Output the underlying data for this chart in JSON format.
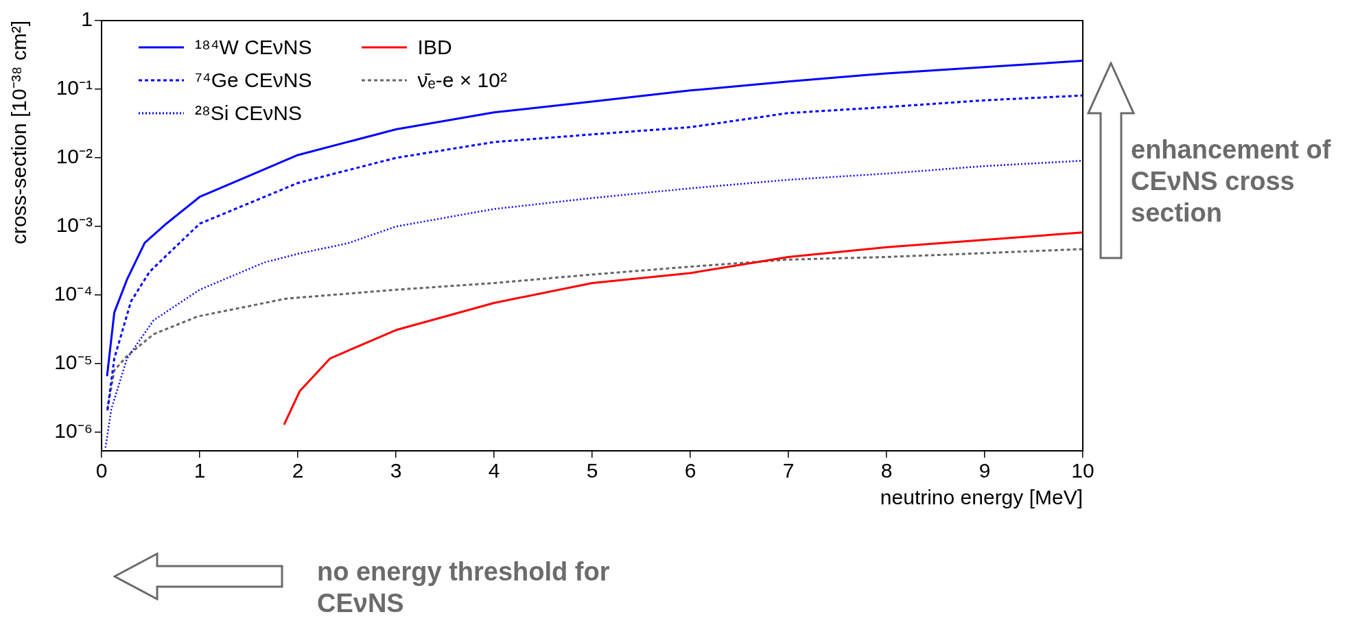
{
  "chart_data": {
    "type": "line",
    "xlabel": "neutrino energy [MeV]",
    "ylabel": "cross-section [10⁻³⁸ cm²]",
    "log": "y",
    "xlim": [
      0,
      10
    ],
    "xticks": [
      0,
      1,
      2,
      3,
      4,
      5,
      6,
      7,
      8,
      9,
      10
    ],
    "ylim": [
      5.4e-07,
      1
    ],
    "yticks": [
      {
        "value": 1e-06,
        "label": "10⁻⁶"
      },
      {
        "value": 1e-05,
        "label": "10⁻⁵"
      },
      {
        "value": 0.0001,
        "label": "10⁻⁴"
      },
      {
        "value": 0.001,
        "label": "10⁻³"
      },
      {
        "value": 0.01,
        "label": "10⁻²"
      },
      {
        "value": 0.1,
        "label": "10⁻¹"
      },
      1
    ],
    "grid": false,
    "legend": "top left",
    "marker": "none",
    "series": [
      {
        "name": "¹⁸⁴W CEνNS",
        "color": "#0000ff",
        "line_style": "solid",
        "x": [
          0.056,
          0.13,
          0.26,
          0.44,
          0.66,
          1,
          2,
          3,
          4,
          5,
          6,
          7,
          8,
          9,
          10
        ],
        "values": [
          6.6e-06,
          5.6e-05,
          0.00017,
          0.00058,
          0.0011,
          0.0027,
          0.011,
          0.026,
          0.046,
          0.066,
          0.096,
          0.13,
          0.17,
          0.21,
          0.26
        ]
      },
      {
        "name": "⁷⁴Ge CEνNS",
        "color": "#0000ff",
        "line_style": "dashed",
        "x": [
          0.06,
          0.13,
          0.3,
          0.49,
          1,
          2,
          3,
          4,
          5,
          6,
          7,
          8,
          9,
          10
        ],
        "values": [
          2.1e-06,
          1.2e-05,
          8.1e-05,
          0.00022,
          0.0011,
          0.0043,
          0.01,
          0.017,
          0.022,
          0.028,
          0.045,
          0.055,
          0.069,
          0.081
        ]
      },
      {
        "name": "²⁸Si CEνNS",
        "color": "#0000ff",
        "line_style": "dotted",
        "x": [
          0.04,
          0.1,
          0.26,
          0.53,
          1,
          1.66,
          2,
          2.51,
          3,
          4,
          5,
          6,
          7,
          8,
          9,
          10
        ],
        "values": [
          6e-07,
          2.2e-06,
          1.2e-05,
          4.3e-05,
          0.00012,
          0.0003,
          0.0004,
          0.00057,
          0.001,
          0.0018,
          0.0026,
          0.0036,
          0.0048,
          0.0059,
          0.0076,
          0.0091
        ]
      },
      {
        "name": "IBD",
        "color": "#ff0000",
        "line_style": "solid",
        "x": [
          1.86,
          2.02,
          2.33,
          3,
          4,
          5,
          6,
          7,
          8,
          9,
          10
        ],
        "values": [
          1.3e-06,
          4e-06,
          1.2e-05,
          3.1e-05,
          7.7e-05,
          0.00015,
          0.00021,
          0.00036,
          0.0005,
          0.00064,
          0.00082
        ]
      },
      {
        "name": "ν̄ₑ-e × 10²",
        "color": "#666666",
        "line_style": "dashed",
        "x": [
          0.06,
          0.13,
          0.26,
          0.53,
          0.98,
          1.88,
          3,
          4,
          5,
          6,
          7,
          8,
          9,
          10
        ],
        "values": [
          2.2e-06,
          8e-06,
          1.3e-05,
          2.7e-05,
          4.9e-05,
          8.9e-05,
          0.00012,
          0.00015,
          0.0002,
          0.00026,
          0.00033,
          0.00036,
          0.00041,
          0.00047
        ]
      }
    ],
    "annotations": [
      "enhancement of CEνNS cross section",
      "no energy threshold for CEνNS"
    ]
  }
}
